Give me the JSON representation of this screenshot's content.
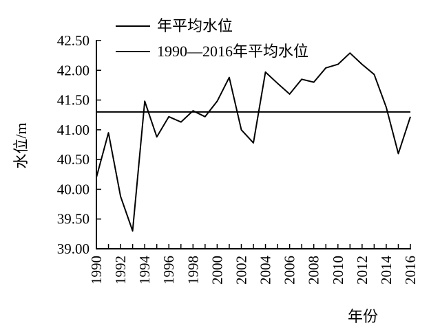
{
  "chart_data": {
    "type": "line",
    "title": "",
    "xlabel": "年份",
    "ylabel": "水位/m",
    "xlim": [
      1990,
      2016
    ],
    "ylim": [
      39.0,
      42.5
    ],
    "y_ticks": [
      "39.00",
      "39.50",
      "40.00",
      "40.50",
      "41.00",
      "41.50",
      "42.00",
      "42.50"
    ],
    "x_ticks": [
      "1990",
      "1992",
      "1994",
      "1996",
      "1998",
      "2000",
      "2002",
      "2004",
      "2006",
      "2008",
      "2010",
      "2012",
      "2014",
      "2016"
    ],
    "grid": false,
    "legend_position": "top",
    "x": [
      1990,
      1991,
      1992,
      1993,
      1994,
      1995,
      1996,
      1997,
      1998,
      1999,
      2000,
      2001,
      2002,
      2003,
      2004,
      2005,
      2006,
      2007,
      2008,
      2009,
      2010,
      2011,
      2012,
      2013,
      2014,
      2015,
      2016
    ],
    "series": [
      {
        "name": "年平均水位",
        "color": "#000000",
        "values": [
          40.2,
          40.95,
          39.88,
          39.3,
          41.48,
          40.88,
          41.22,
          41.13,
          41.32,
          41.22,
          41.48,
          41.88,
          41.0,
          40.78,
          41.97,
          41.78,
          41.6,
          41.85,
          41.8,
          42.04,
          42.1,
          42.29,
          42.1,
          41.93,
          41.38,
          40.6,
          41.22
        ]
      },
      {
        "name": "1990—2016年平均水位",
        "color": "#000000",
        "values": [
          41.3,
          41.3,
          41.3,
          41.3,
          41.3,
          41.3,
          41.3,
          41.3,
          41.3,
          41.3,
          41.3,
          41.3,
          41.3,
          41.3,
          41.3,
          41.3,
          41.3,
          41.3,
          41.3,
          41.3,
          41.3,
          41.3,
          41.3,
          41.3,
          41.3,
          41.3,
          41.3
        ]
      }
    ]
  }
}
